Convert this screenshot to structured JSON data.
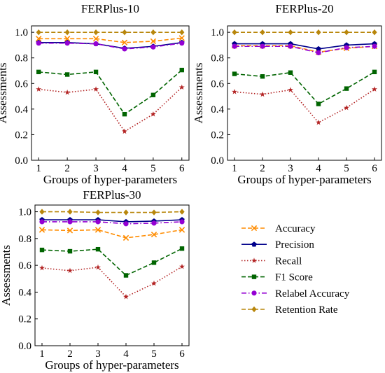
{
  "chart_data": [
    {
      "type": "line",
      "title": "FERPlus-10",
      "xlabel": "Groups of hyper-parameters",
      "ylabel": "Assessments",
      "x": [
        1,
        2,
        3,
        4,
        5,
        6
      ],
      "ylim": [
        0,
        1.05
      ],
      "yticks": [
        0.0,
        0.2,
        0.4,
        0.6,
        0.8,
        1.0
      ],
      "ytick_labels": [
        "0.0",
        "0.2",
        "0.4",
        "0.6",
        "0.8",
        "1.0"
      ],
      "grid": false,
      "series": [
        {
          "name": "Accuracy",
          "values": [
            0.95,
            0.95,
            0.95,
            0.92,
            0.93,
            0.955
          ]
        },
        {
          "name": "Precision",
          "values": [
            0.92,
            0.92,
            0.91,
            0.875,
            0.89,
            0.92
          ]
        },
        {
          "name": "Recall",
          "values": [
            0.555,
            0.53,
            0.555,
            0.225,
            0.36,
            0.57
          ]
        },
        {
          "name": "F1 Score",
          "values": [
            0.69,
            0.67,
            0.69,
            0.36,
            0.51,
            0.705
          ]
        },
        {
          "name": "Relabel Accuracy",
          "values": [
            0.915,
            0.915,
            0.91,
            0.87,
            0.885,
            0.915
          ]
        },
        {
          "name": "Retention Rate",
          "values": [
            1.0,
            1.0,
            1.0,
            1.0,
            1.0,
            1.0
          ]
        }
      ]
    },
    {
      "type": "line",
      "title": "FERPlus-20",
      "xlabel": "Groups of hyper-parameters",
      "ylabel": "Assessments",
      "x": [
        1,
        2,
        3,
        4,
        5,
        6
      ],
      "ylim": [
        0,
        1.05
      ],
      "yticks": [
        0.0,
        0.2,
        0.4,
        0.6,
        0.8,
        1.0
      ],
      "ytick_labels": [
        "0.0",
        "0.2",
        "0.4",
        "0.6",
        "0.8",
        "1.0"
      ],
      "grid": false,
      "series": [
        {
          "name": "Accuracy",
          "values": [
            0.895,
            0.895,
            0.895,
            0.845,
            0.875,
            0.89
          ]
        },
        {
          "name": "Precision",
          "values": [
            0.91,
            0.91,
            0.91,
            0.87,
            0.9,
            0.91
          ]
        },
        {
          "name": "Recall",
          "values": [
            0.535,
            0.515,
            0.55,
            0.295,
            0.41,
            0.555
          ]
        },
        {
          "name": "F1 Score",
          "values": [
            0.675,
            0.655,
            0.685,
            0.44,
            0.56,
            0.69
          ]
        },
        {
          "name": "Relabel Accuracy",
          "values": [
            0.89,
            0.89,
            0.89,
            0.84,
            0.88,
            0.89
          ]
        },
        {
          "name": "Retention Rate",
          "values": [
            1.0,
            1.0,
            1.0,
            1.0,
            1.0,
            1.0
          ]
        }
      ]
    },
    {
      "type": "line",
      "title": "FERPlus-30",
      "xlabel": "Groups of hyper-parameters",
      "ylabel": "Assessments",
      "x": [
        1,
        2,
        3,
        4,
        5,
        6
      ],
      "ylim": [
        0,
        1.05
      ],
      "yticks": [
        0.0,
        0.2,
        0.4,
        0.6,
        0.8,
        1.0
      ],
      "ytick_labels": [
        "0.0",
        "0.2",
        "0.4",
        "0.6",
        "0.8",
        "1.0"
      ],
      "grid": false,
      "series": [
        {
          "name": "Accuracy",
          "values": [
            0.865,
            0.86,
            0.865,
            0.805,
            0.83,
            0.865
          ]
        },
        {
          "name": "Precision",
          "values": [
            0.94,
            0.94,
            0.94,
            0.925,
            0.93,
            0.94
          ]
        },
        {
          "name": "Recall",
          "values": [
            0.58,
            0.56,
            0.585,
            0.365,
            0.465,
            0.59
          ]
        },
        {
          "name": "F1 Score",
          "values": [
            0.715,
            0.705,
            0.72,
            0.525,
            0.62,
            0.725
          ]
        },
        {
          "name": "Relabel Accuracy",
          "values": [
            0.925,
            0.925,
            0.925,
            0.91,
            0.915,
            0.925
          ]
        },
        {
          "name": "Retention Rate",
          "values": [
            1.0,
            1.0,
            0.995,
            0.995,
            0.995,
            1.0
          ]
        }
      ]
    }
  ],
  "legend": {
    "placement": "lower-right",
    "entries": [
      {
        "name": "Accuracy",
        "color": "#FF8C00",
        "linestyle": "dashed",
        "marker": "x"
      },
      {
        "name": "Precision",
        "color": "#00008B",
        "linestyle": "solid",
        "marker": "pentagon"
      },
      {
        "name": "Recall",
        "color": "#B22222",
        "linestyle": "dotted",
        "marker": "star"
      },
      {
        "name": "F1 Score",
        "color": "#006400",
        "linestyle": "dashed",
        "marker": "square"
      },
      {
        "name": "Relabel Accuracy",
        "color": "#9400D3",
        "linestyle": "dashdot",
        "marker": "circle"
      },
      {
        "name": "Retention Rate",
        "color": "#B8860B",
        "linestyle": "dashed",
        "marker": "diamond"
      }
    ]
  }
}
